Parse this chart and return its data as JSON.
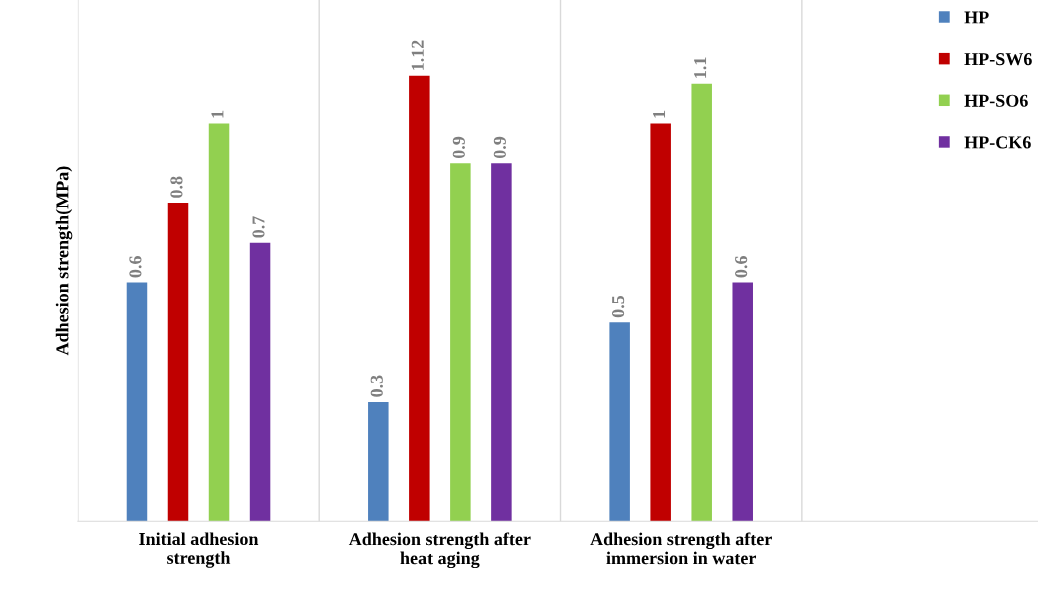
{
  "chart_data": {
    "type": "bar",
    "ylabel": "Adhesion strength(MPa)",
    "categories": [
      "Initial adhesion\nstrength",
      "Adhesion strength after\nheat aging",
      "Adhesion strength after\nimmersion in water",
      null
    ],
    "series": [
      {
        "name": "HP",
        "color": "#4f81bd",
        "values": [
          0.6,
          0.3,
          0.5,
          null
        ]
      },
      {
        "name": "HP-SW6",
        "color": "#c00000",
        "values": [
          0.8,
          1.12,
          1,
          null
        ]
      },
      {
        "name": "HP-SO6",
        "color": "#92d050",
        "values": [
          1,
          0.9,
          1.1,
          null
        ]
      },
      {
        "name": "HP-CK6",
        "color": "#7030a0",
        "values": [
          0.7,
          0.9,
          0.6,
          null
        ]
      }
    ],
    "data_labels": true,
    "grid": "x",
    "legend": "top right",
    "tick_labels": "x"
  }
}
